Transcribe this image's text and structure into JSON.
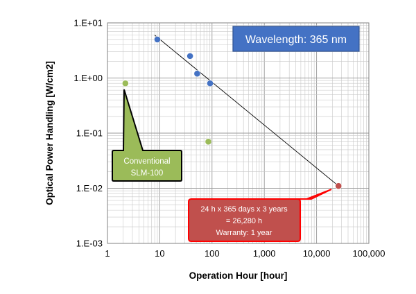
{
  "chart_data": {
    "type": "scatter",
    "xlabel": "Operation Hour [hour]",
    "ylabel": "Optical Power Handling [W/cm2]",
    "xscale": "log",
    "yscale": "log",
    "xlim": [
      1,
      100000
    ],
    "ylim": [
      0.001,
      10
    ],
    "xticks": [
      1,
      10,
      100,
      1000,
      10000,
      100000
    ],
    "xtick_labels": [
      "1",
      "10",
      "100",
      "1,000",
      "10,000",
      "100,000"
    ],
    "yticks": [
      0.001,
      0.01,
      0.1,
      1,
      10
    ],
    "ytick_labels": [
      "1.E-03",
      "1.E-02",
      "1.E-01",
      "1.E+00",
      "1.E+01"
    ],
    "grid": true,
    "series": [
      {
        "color": "#4472C4",
        "points": [
          {
            "x": 9,
            "y": 5.0
          },
          {
            "x": 38,
            "y": 2.5
          },
          {
            "x": 52,
            "y": 1.2
          },
          {
            "x": 92,
            "y": 0.8
          }
        ]
      },
      {
        "color": "#9BBB59",
        "points": [
          {
            "x": 2.2,
            "y": 0.8
          },
          {
            "x": 85,
            "y": 0.07
          }
        ]
      },
      {
        "color": "#C0504D",
        "points": [
          {
            "x": 26280,
            "y": 0.011
          }
        ]
      }
    ],
    "trendline": {
      "color": "#000000",
      "from": {
        "x": 8,
        "y": 6.0
      },
      "to": {
        "x": 26280,
        "y": 0.011
      }
    },
    "annotations": {
      "wavelength": "Wavelength: 365 nm",
      "conventional": [
        "Conventional",
        "SLM-100"
      ],
      "operation": [
        "24 h x 365 days x 3 years",
        "= 26,280 h",
        "Warranty: 1 year"
      ]
    }
  }
}
